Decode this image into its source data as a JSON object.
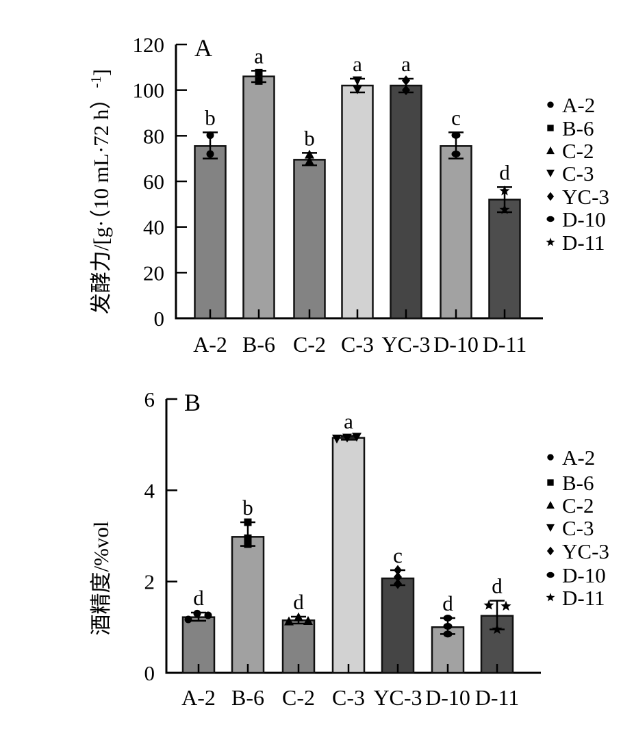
{
  "figure": {
    "background": "#ffffff",
    "axis_color": "#000000"
  },
  "chart_data": [
    {
      "type": "bar",
      "panel_label": "A",
      "title": "",
      "xlabel": "",
      "ylabel": "发酵力/[g·（10 mL·72 h）⁻¹]",
      "ylabel_parts": {
        "main": "发酵力/[g·（10 mL·72 h）",
        "sup": "-1",
        "end": "]"
      },
      "ylim": [
        0,
        120
      ],
      "yticks": [
        0,
        20,
        40,
        60,
        80,
        100,
        120
      ],
      "grid": false,
      "legend_position": "right",
      "categories": [
        "A-2",
        "B-6",
        "C-2",
        "C-3",
        "YC-3",
        "D-10",
        "D-11"
      ],
      "values": [
        75.5,
        106,
        69.5,
        102,
        102,
        75.5,
        52
      ],
      "error_plus": [
        6,
        2.5,
        3,
        3,
        3,
        6,
        5.5
      ],
      "error_minus": [
        5.5,
        2.5,
        2.5,
        3,
        3,
        5.5,
        5.5
      ],
      "sig_letters": [
        "b",
        "a",
        "b",
        "a",
        "a",
        "c",
        "d"
      ],
      "bar_colors": [
        "#838383",
        "#a1a1a1",
        "#838383",
        "#d2d2d2",
        "#454545",
        "#a2a2a2",
        "#4d4d4d"
      ],
      "replicate_points": [
        [
          {
            "v": 80.2,
            "dx": 0
          },
          {
            "v": 72,
            "dx": 0
          }
        ],
        [
          {
            "v": 107.6,
            "dx": 0
          },
          {
            "v": 104,
            "dx": 0
          }
        ],
        [
          {
            "v": 71.8,
            "dx": 0
          },
          {
            "v": 68.8,
            "dx": 0
          }
        ],
        [
          {
            "v": 104.2,
            "dx": 0
          },
          {
            "v": 100.3,
            "dx": 0
          }
        ],
        [
          {
            "v": 104.2,
            "dx": 0
          },
          {
            "v": 100,
            "dx": 0
          }
        ],
        [
          {
            "v": 80.2,
            "dx": 0
          },
          {
            "v": 72,
            "dx": 0
          }
        ],
        [
          {
            "v": 55.8,
            "dx": 0
          },
          {
            "v": 47.6,
            "dx": 0
          }
        ]
      ],
      "legend_entries": [
        {
          "label": "A-2",
          "marker": "circle"
        },
        {
          "label": "B-6",
          "marker": "square"
        },
        {
          "label": "C-2",
          "marker": "triangle-up"
        },
        {
          "label": "C-3",
          "marker": "triangle-down"
        },
        {
          "label": "YC-3",
          "marker": "diamond"
        },
        {
          "label": "D-10",
          "marker": "ellipse"
        },
        {
          "label": "D-11",
          "marker": "star"
        }
      ]
    },
    {
      "type": "bar",
      "panel_label": "B",
      "title": "",
      "xlabel": "",
      "ylabel": "酒精度/%vol",
      "ylabel_parts": {
        "main": "酒精度/%vol",
        "sup": "",
        "end": ""
      },
      "ylim": [
        0,
        6
      ],
      "yticks": [
        0,
        2,
        4,
        6
      ],
      "grid": false,
      "legend_position": "right",
      "categories": [
        "A-2",
        "B-6",
        "C-2",
        "C-3",
        "YC-3",
        "D-10",
        "D-11"
      ],
      "values": [
        1.22,
        2.98,
        1.15,
        5.15,
        2.07,
        1.0,
        1.25
      ],
      "error_plus": [
        0.1,
        0.32,
        0.08,
        0.04,
        0.18,
        0.2,
        0.33
      ],
      "error_minus": [
        0.08,
        0.2,
        0.07,
        0.04,
        0.15,
        0.15,
        0.3
      ],
      "sig_letters": [
        "d",
        "b",
        "d",
        "a",
        "c",
        "d",
        "d"
      ],
      "bar_colors": [
        "#838383",
        "#a1a1a1",
        "#838383",
        "#d2d2d2",
        "#454545",
        "#a2a2a2",
        "#4d4d4d"
      ],
      "replicate_points": [
        [
          {
            "v": 1.17,
            "dx": -15
          },
          {
            "v": 1.3,
            "dx": -2
          },
          {
            "v": 1.26,
            "dx": 14
          }
        ],
        [
          {
            "v": 3.3,
            "dx": 0
          },
          {
            "v": 2.95,
            "dx": 0
          },
          {
            "v": 2.82,
            "dx": 0
          }
        ],
        [
          {
            "v": 1.13,
            "dx": -14
          },
          {
            "v": 1.22,
            "dx": 0
          },
          {
            "v": 1.14,
            "dx": 14
          }
        ],
        [
          {
            "v": 5.13,
            "dx": -17
          },
          {
            "v": 5.15,
            "dx": -2
          },
          {
            "v": 5.17,
            "dx": 12
          }
        ],
        [
          {
            "v": 2.25,
            "dx": 0
          },
          {
            "v": 2.1,
            "dx": 0
          },
          {
            "v": 1.95,
            "dx": 0
          }
        ],
        [
          {
            "v": 1.2,
            "dx": 0
          },
          {
            "v": 1.02,
            "dx": 0
          },
          {
            "v": 0.85,
            "dx": 0
          }
        ],
        [
          {
            "v": 1.48,
            "dx": -12
          },
          {
            "v": 1.46,
            "dx": 13
          },
          {
            "v": 0.95,
            "dx": 0
          }
        ]
      ],
      "legend_entries": [
        {
          "label": "A-2",
          "marker": "circle"
        },
        {
          "label": "B-6",
          "marker": "square"
        },
        {
          "label": "C-2",
          "marker": "triangle-up"
        },
        {
          "label": "C-3",
          "marker": "triangle-down"
        },
        {
          "label": "YC-3",
          "marker": "diamond"
        },
        {
          "label": "D-10",
          "marker": "ellipse"
        },
        {
          "label": "D-11",
          "marker": "star"
        }
      ]
    }
  ]
}
